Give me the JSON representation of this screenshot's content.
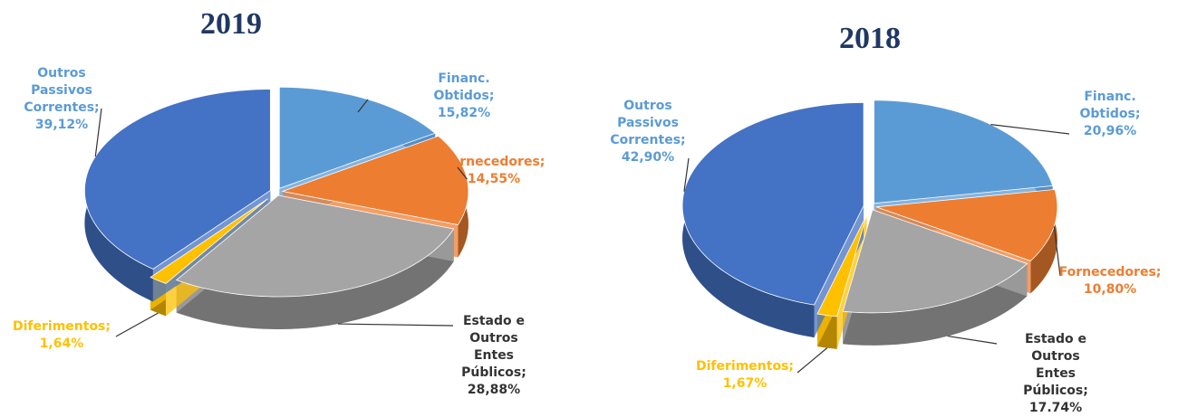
{
  "chart_data": [
    {
      "type": "pie",
      "title": "2019",
      "categories": [
        "Financ. Obtidos;",
        "Fornecedores;",
        "Estado e Outros Entes Públicos;",
        "Diferimentos;",
        "Outros Passivos Correntes;"
      ],
      "values": [
        15.82,
        14.55,
        28.88,
        1.64,
        39.12
      ],
      "value_labels": [
        "15,82%",
        "14,55%",
        "28,88%",
        "1,64%",
        "39,12%"
      ],
      "colors": [
        "#5b9bd5",
        "#ed7d31",
        "#a5a5a5",
        "#ffc000",
        "#4472c4"
      ]
    },
    {
      "type": "pie",
      "title": "2018",
      "categories": [
        "Financ. Obtidos;",
        "Fornecedores;",
        "Estado e Outros Entes Públicos;",
        "Diferimentos;",
        "Outros Passivos Correntes;"
      ],
      "values": [
        20.96,
        10.8,
        17.74,
        1.67,
        42.9
      ],
      "value_labels": [
        "20,96%",
        "10,80%",
        "17.74%",
        "1,67%",
        "42,90%"
      ],
      "colors": [
        "#5b9bd5",
        "#ed7d31",
        "#a5a5a5",
        "#ffc000",
        "#4472c4"
      ]
    }
  ]
}
